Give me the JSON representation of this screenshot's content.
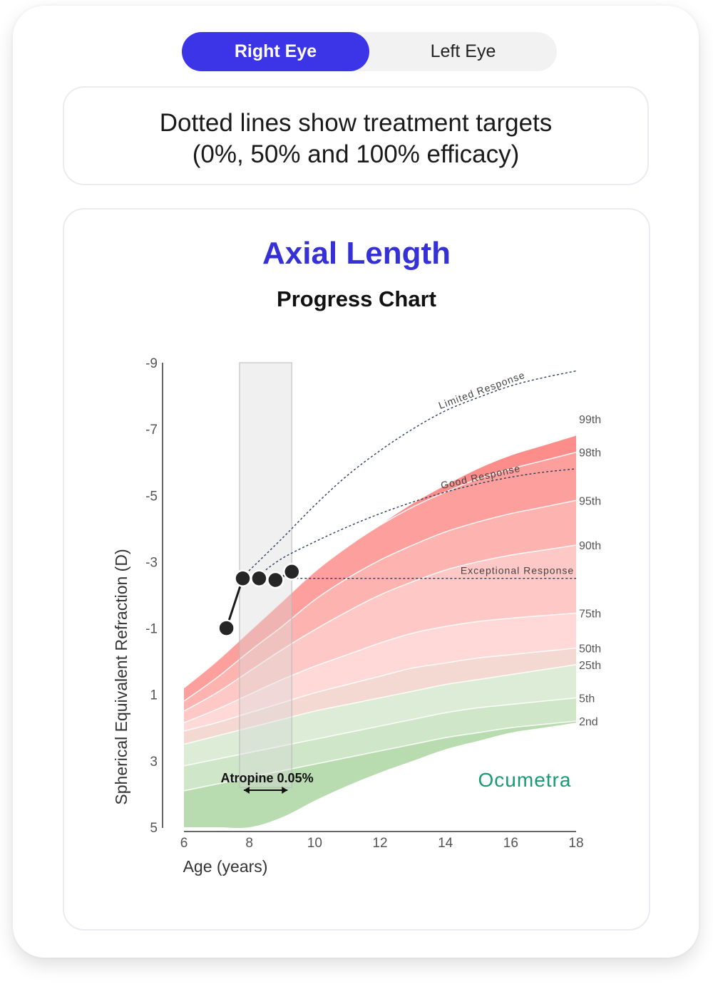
{
  "toggle": {
    "right_eye_label": "Right Eye",
    "left_eye_label": "Left Eye",
    "selected": "Right Eye"
  },
  "note": {
    "line1": "Dotted lines show treatment targets",
    "line2": "(0%, 50% and 100% efficacy)"
  },
  "brand": {
    "logo_text": "Ocumetra",
    "logo_color": "#1a9a70"
  },
  "colors": {
    "accent": "#3c35e8",
    "title": "#3531d6"
  },
  "chart_data": {
    "type": "area",
    "title": "Axial Length",
    "subtitle": "Progress Chart",
    "xlabel": "Age (years)",
    "ylabel": "Spherical Equivalent Refraction (D)",
    "xlim": [
      6,
      18
    ],
    "ylim": [
      5,
      -9
    ],
    "y_inverted": true,
    "x_ticks": [
      6,
      8,
      10,
      12,
      14,
      16,
      18
    ],
    "y_ticks": [
      -9,
      -7,
      -5,
      -3,
      -1,
      1,
      3,
      5
    ],
    "band_x": [
      6,
      7,
      8,
      9,
      10,
      11,
      12,
      13,
      14,
      15,
      16,
      17,
      18
    ],
    "percentile_curves": [
      {
        "label": "99th",
        "values": [
          0.4,
          -0.5,
          -1.5,
          -2.5,
          -3.5,
          -4.3,
          -5.0,
          -5.55,
          -6.0,
          -6.4,
          -6.7,
          -7.0,
          -7.3
        ]
      },
      {
        "label": "98th",
        "values": [
          0.8,
          0.0,
          -0.9,
          -1.8,
          -2.7,
          -3.45,
          -4.1,
          -4.65,
          -5.1,
          -5.5,
          -5.8,
          -6.05,
          -6.3
        ]
      },
      {
        "label": "95th",
        "values": [
          1.2,
          0.5,
          -0.3,
          -1.05,
          -1.85,
          -2.5,
          -3.05,
          -3.5,
          -3.9,
          -4.2,
          -4.45,
          -4.65,
          -4.85
        ]
      },
      {
        "label": "90th",
        "values": [
          1.5,
          0.95,
          0.3,
          -0.35,
          -0.95,
          -1.5,
          -2.0,
          -2.4,
          -2.75,
          -3.0,
          -3.2,
          -3.35,
          -3.5
        ]
      },
      {
        "label": "75th",
        "values": [
          1.85,
          1.45,
          1.0,
          0.55,
          0.15,
          -0.2,
          -0.55,
          -0.85,
          -1.05,
          -1.2,
          -1.3,
          -1.38,
          -1.45
        ]
      },
      {
        "label": "50th",
        "values": [
          2.1,
          1.85,
          1.55,
          1.25,
          0.95,
          0.7,
          0.45,
          0.2,
          0.05,
          -0.1,
          -0.2,
          -0.3,
          -0.4
        ]
      },
      {
        "label": "25th",
        "values": [
          2.5,
          2.25,
          2.0,
          1.75,
          1.5,
          1.3,
          1.1,
          0.9,
          0.7,
          0.55,
          0.4,
          0.25,
          0.1
        ]
      },
      {
        "label": "5th",
        "values": [
          3.15,
          2.95,
          2.75,
          2.55,
          2.35,
          2.15,
          1.95,
          1.75,
          1.55,
          1.4,
          1.3,
          1.2,
          1.1
        ]
      },
      {
        "label": "2nd",
        "values": [
          3.9,
          3.7,
          3.5,
          3.3,
          3.1,
          2.9,
          2.7,
          2.5,
          2.3,
          2.15,
          2.0,
          1.9,
          1.8
        ]
      }
    ],
    "upper_edge": [
      1.1,
      0.3,
      -0.6,
      -1.55,
      -2.5,
      -3.35,
      -4.1,
      -4.75,
      -5.3,
      -5.8,
      -6.2,
      -6.5,
      -6.8
    ],
    "lower_edge": [
      5.0,
      5.0,
      5.0,
      4.7,
      4.2,
      3.75,
      3.35,
      3.0,
      2.65,
      2.4,
      2.15,
      2.0,
      1.85
    ],
    "band_colors": [
      "#fc8d8b",
      "#fd9f9c",
      "#fdb4b1",
      "#fec8c6",
      "#fed9d7",
      "#f4d8d2",
      "#dcecd6",
      "#cfe6c8",
      "#b8dcaf",
      "#9fcf92"
    ],
    "measurements": [
      {
        "x": 7.3,
        "y": -1.0
      },
      {
        "x": 7.8,
        "y": -2.5
      },
      {
        "x": 8.3,
        "y": -2.5
      },
      {
        "x": 8.8,
        "y": -2.45
      },
      {
        "x": 9.3,
        "y": -2.7
      }
    ],
    "treatment": {
      "label": "Atropine 0.05%",
      "x_start": 7.7,
      "x_end": 9.3
    },
    "response_curves": [
      {
        "label": "Limited Response",
        "x": [
          7.8,
          9,
          10,
          11,
          12,
          13,
          14,
          15,
          16,
          17,
          18
        ],
        "y": [
          -2.55,
          -3.7,
          -4.7,
          -5.6,
          -6.35,
          -7.0,
          -7.55,
          -7.95,
          -8.3,
          -8.55,
          -8.75
        ]
      },
      {
        "label": "Good Response",
        "x": [
          8.3,
          9,
          10,
          11,
          12,
          13,
          14,
          15,
          16,
          17,
          18
        ],
        "y": [
          -2.6,
          -3.1,
          -3.6,
          -4.05,
          -4.45,
          -4.8,
          -5.1,
          -5.35,
          -5.55,
          -5.7,
          -5.8
        ]
      },
      {
        "label": "Exceptional Response",
        "x": [
          9.3,
          18
        ],
        "y": [
          -2.5,
          -2.5
        ]
      }
    ]
  }
}
